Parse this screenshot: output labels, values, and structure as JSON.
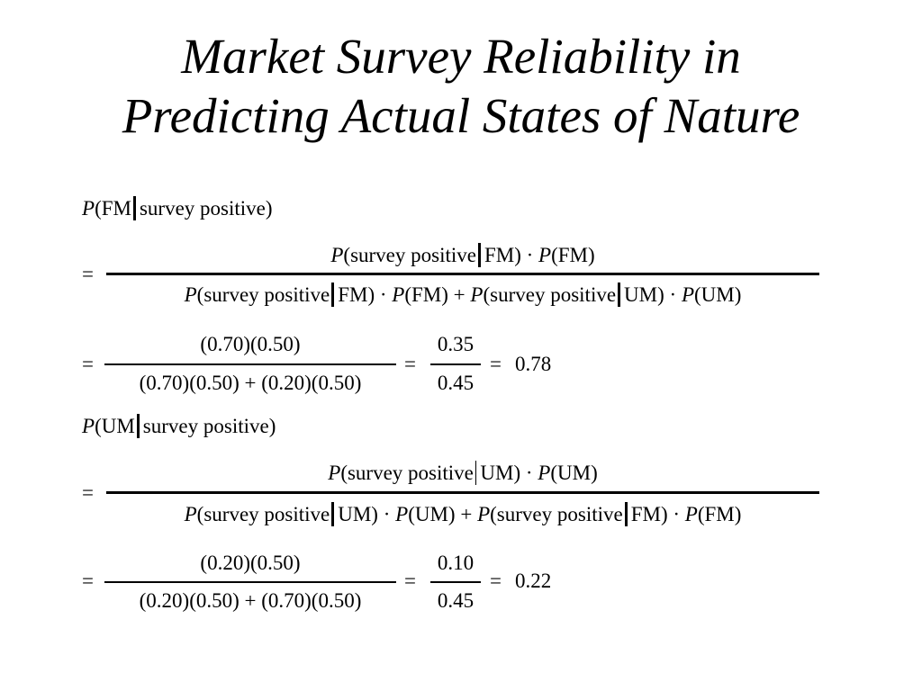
{
  "title": {
    "line1": "Market Survey Reliability in",
    "line2": "Predicting Actual States of Nature"
  },
  "formula_fm": {
    "lhs": {
      "P": "P",
      "event": "FM",
      "given": "survey positive",
      "close": ")"
    },
    "num": {
      "P1": "P",
      "a": "survey positive",
      "b": "FM) · ",
      "P2": "P",
      "c": "(FM)"
    },
    "den": {
      "P1": "P",
      "a": "survey positive",
      "b": "FM) · ",
      "P2": "P",
      "c": "(FM) + ",
      "P3": "P",
      "d": "survey positive",
      "e": "UM) · ",
      "P4": "P",
      "f": "(UM)"
    },
    "calc_num": "(0.70)(0.50)",
    "calc_den": "(0.70)(0.50) + (0.20)(0.50)",
    "ratio_num": "0.35",
    "ratio_den": "0.45",
    "result": "0.78"
  },
  "formula_um": {
    "lhs": {
      "P": "P",
      "event": "UM",
      "given": "survey positive",
      "close": ")"
    },
    "num": {
      "P1": "P",
      "a": "survey positive",
      "b": "UM) · ",
      "P2": "P",
      "c": "(UM)"
    },
    "den": {
      "P1": "P",
      "a": "survey positive",
      "b": "UM) · ",
      "P2": "P",
      "c": "(UM) + ",
      "P3": "P",
      "d": "survey positive",
      "e": "FM) · ",
      "P4": "P",
      "f": "(FM)"
    },
    "calc_num": "(0.20)(0.50)",
    "calc_den": "(0.20)(0.50) + (0.70)(0.50)",
    "ratio_num": "0.10",
    "ratio_den": "0.45",
    "result": "0.22"
  },
  "symbols": {
    "equals": "=",
    "open": "("
  }
}
